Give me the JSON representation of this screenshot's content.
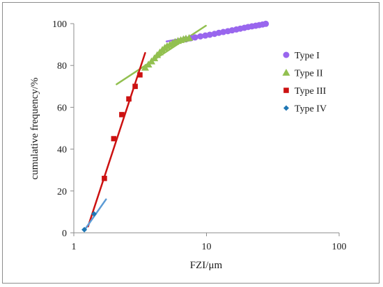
{
  "chart_data": {
    "type": "scatter",
    "xlabel": "FZI/μm",
    "ylabel": "cumulative frequency/%",
    "xscale": "log",
    "xlim": [
      1,
      100
    ],
    "ylim": [
      0,
      100
    ],
    "x_ticks": [
      1,
      10,
      100
    ],
    "x_tick_labels": [
      "1",
      "10",
      "100"
    ],
    "y_ticks": [
      0,
      20,
      40,
      60,
      80,
      100
    ],
    "y_tick_labels": [
      "0",
      "20",
      "40",
      "60",
      "80",
      "100"
    ],
    "grid": false,
    "legend_position": "right",
    "series": [
      {
        "name": "Type I",
        "marker": "circle",
        "color": "#9966ee",
        "points": [
          [
            7.0,
            92.5
          ],
          [
            7.6,
            93.0
          ],
          [
            8.2,
            93.4
          ],
          [
            9.0,
            93.9
          ],
          [
            9.8,
            94.3
          ],
          [
            10.6,
            94.7
          ],
          [
            11.5,
            95.1
          ],
          [
            12.4,
            95.6
          ],
          [
            13.4,
            96.0
          ],
          [
            14.5,
            96.4
          ],
          [
            15.6,
            96.8
          ],
          [
            16.8,
            97.2
          ],
          [
            18.0,
            97.6
          ],
          [
            19.3,
            98.0
          ],
          [
            20.6,
            98.4
          ],
          [
            22.0,
            98.7
          ],
          [
            23.5,
            99.0
          ],
          [
            25.0,
            99.3
          ],
          [
            26.5,
            99.6
          ],
          [
            28.0,
            99.9
          ]
        ],
        "fit_line": [
          [
            5.0,
            91.5
          ],
          [
            28.0,
            100.0
          ]
        ]
      },
      {
        "name": "Type II",
        "marker": "triangle",
        "color": "#92c050",
        "points": [
          [
            3.45,
            79.0
          ],
          [
            3.65,
            80.5
          ],
          [
            3.85,
            82.0
          ],
          [
            4.05,
            83.5
          ],
          [
            4.25,
            85.0
          ],
          [
            4.45,
            86.3
          ],
          [
            4.65,
            87.5
          ],
          [
            4.85,
            88.5
          ],
          [
            5.05,
            89.3
          ],
          [
            5.3,
            90.0
          ],
          [
            5.55,
            90.7
          ],
          [
            5.8,
            91.3
          ],
          [
            6.1,
            91.8
          ],
          [
            6.4,
            92.2
          ],
          [
            6.7,
            92.6
          ],
          [
            7.0,
            92.9
          ],
          [
            7.4,
            93.2
          ]
        ],
        "fit_line": [
          [
            2.1,
            71.0
          ],
          [
            9.9,
            99.0
          ]
        ]
      },
      {
        "name": "Type III",
        "marker": "square",
        "color": "#cc1111",
        "points": [
          [
            1.7,
            26.0
          ],
          [
            2.0,
            45.0
          ],
          [
            2.3,
            56.5
          ],
          [
            2.6,
            64.0
          ],
          [
            2.9,
            70.0
          ],
          [
            3.15,
            75.5
          ]
        ],
        "fit_line": [
          [
            1.28,
            3.0
          ],
          [
            3.45,
            86.0
          ]
        ]
      },
      {
        "name": "Type IV",
        "marker": "diamond",
        "color": "#1f77b4",
        "points": [
          [
            1.2,
            1.5
          ],
          [
            1.42,
            9.0
          ]
        ],
        "fit_line": [
          [
            1.2,
            1.2
          ],
          [
            1.75,
            16.0
          ]
        ],
        "fit_color": "#5b9bd5"
      }
    ]
  }
}
